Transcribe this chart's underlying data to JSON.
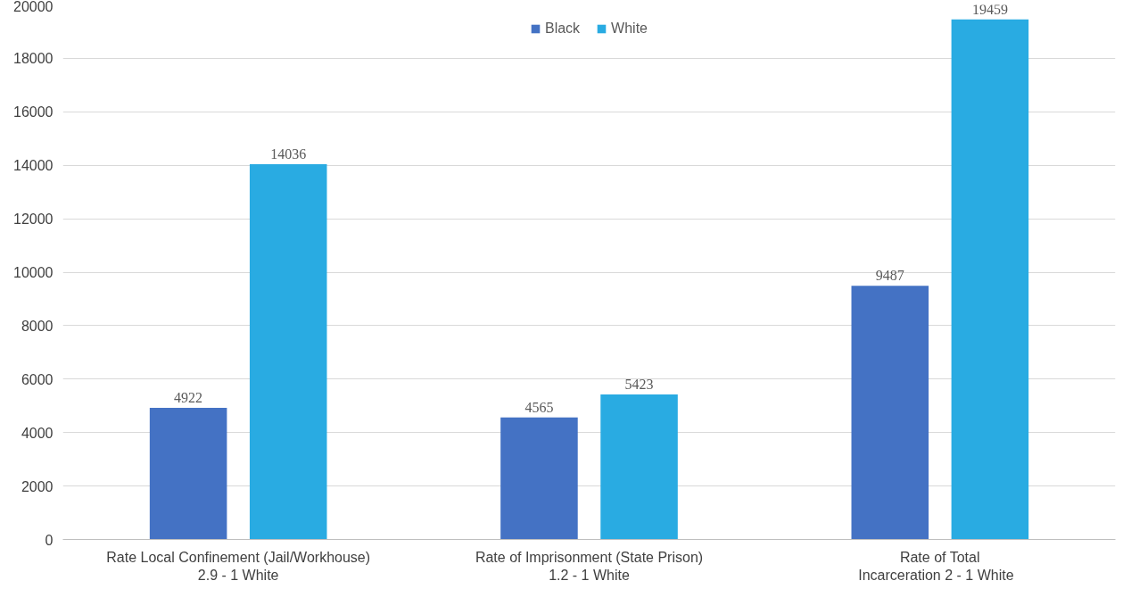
{
  "chart_data": {
    "type": "bar",
    "categories": [
      "Rate Local Confinement (Jail/Workhouse)\n2.9 - 1 White",
      "Rate of Imprisonment (State Prison)\n1.2 - 1 White",
      "Rate of Total\nIncarceration   2 - 1 White"
    ],
    "series": [
      {
        "name": "Black",
        "color": "#4472c4",
        "values": [
          4922,
          4565,
          9487
        ]
      },
      {
        "name": "White",
        "color": "#29abe2",
        "values": [
          14036,
          5423,
          19459
        ]
      }
    ],
    "ylim": [
      0,
      20000
    ],
    "yticks": [
      0,
      2000,
      4000,
      6000,
      8000,
      10000,
      12000,
      14000,
      16000,
      18000,
      20000
    ],
    "grid": "y",
    "legend": "top",
    "data_labels": true
  }
}
